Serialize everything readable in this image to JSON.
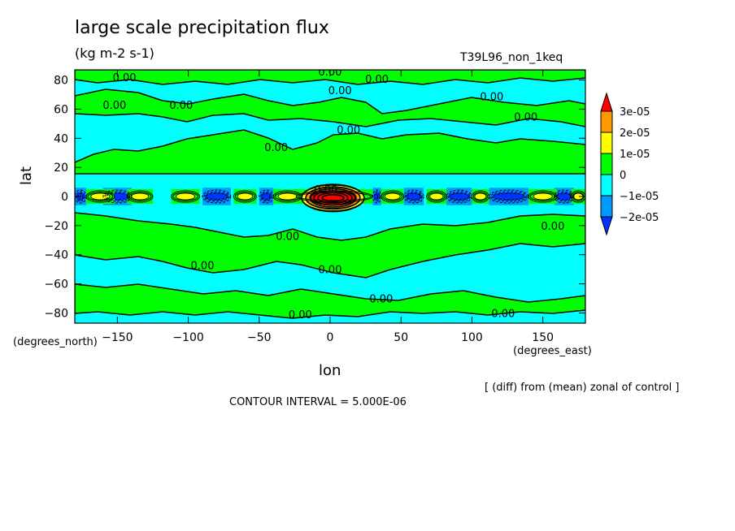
{
  "chart_data": {
    "type": "heatmap",
    "title": "large scale precipitation flux",
    "subtitle": "(kg m-2 s-1)",
    "run_label": "T39L96_non_1keq",
    "xlabel": "lon",
    "ylabel": "lat",
    "x_units": "(degrees_east)",
    "y_units": "(degrees_north)",
    "xlim": [
      -180,
      180
    ],
    "ylim": [
      -87,
      87
    ],
    "x_ticks": [
      -150,
      -100,
      -50,
      0,
      50,
      100,
      150
    ],
    "y_ticks": [
      80,
      60,
      40,
      20,
      0,
      -20,
      -40,
      -60,
      -80
    ],
    "contour_label": "0.00",
    "note": "[ (diff) from (mean) zonal of control ]",
    "contour_interval": "CONTOUR INTERVAL = 5.000E-06",
    "colorbar": {
      "labels": [
        "3e-05",
        "2e-05",
        "1e-05",
        "0",
        "−1e-05",
        "−2e-05"
      ],
      "colors": [
        "#ff0000",
        "#ff9900",
        "#ffff00",
        "#00ff00",
        "#00ffff",
        "#0099ff",
        "#0033ff"
      ]
    },
    "background_color": "#00ffff",
    "positive_color": "#00ff00",
    "equatorial_band": {
      "positive_bands": [
        [
          -172,
          -152
        ],
        [
          -143,
          -125
        ],
        [
          -112,
          -92
        ],
        [
          -68,
          -52
        ],
        [
          -40,
          -20
        ],
        [
          -24,
          30
        ],
        [
          36,
          52
        ],
        [
          68,
          82
        ],
        [
          100,
          112
        ],
        [
          140,
          160
        ],
        [
          170,
          180
        ]
      ],
      "strong_positive_bands": [
        [
          -20,
          24
        ]
      ],
      "negative_bands": [
        [
          -180,
          -172
        ],
        [
          -160,
          -140
        ],
        [
          -90,
          -70
        ],
        [
          -50,
          -40
        ],
        [
          30,
          36
        ],
        [
          52,
          66
        ],
        [
          82,
          100
        ],
        [
          112,
          140
        ],
        [
          158,
          172
        ]
      ]
    },
    "contour_label_positions": [
      {
        "lon": -145,
        "lat": 82
      },
      {
        "lon": 0,
        "lat": 86
      },
      {
        "lon": 33,
        "lat": 81
      },
      {
        "lon": -152,
        "lat": 63
      },
      {
        "lon": -105,
        "lat": 63
      },
      {
        "lon": 7,
        "lat": 73
      },
      {
        "lon": 114,
        "lat": 69
      },
      {
        "lon": 138,
        "lat": 55
      },
      {
        "lon": 13,
        "lat": 46
      },
      {
        "lon": -38,
        "lat": 34
      },
      {
        "lon": -3,
        "lat": 5
      },
      {
        "lon": -30,
        "lat": -27
      },
      {
        "lon": 157,
        "lat": -20
      },
      {
        "lon": -90,
        "lat": -47
      },
      {
        "lon": 0,
        "lat": -50
      },
      {
        "lon": 36,
        "lat": -70
      },
      {
        "lon": -21,
        "lat": -81
      },
      {
        "lon": 122,
        "lat": -80
      }
    ]
  }
}
